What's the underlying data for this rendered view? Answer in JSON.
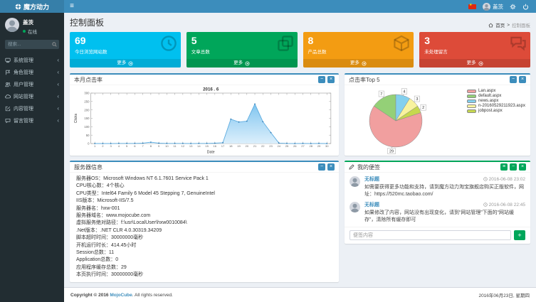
{
  "navbar": {
    "brand": "魔方动力",
    "user_name": "盖茨"
  },
  "sidebar": {
    "user": {
      "name": "盖茨",
      "status": "在线"
    },
    "search_placeholder": "搜索...",
    "menu": [
      {
        "label": "系统管理"
      },
      {
        "label": "角色管理"
      },
      {
        "label": "用户管理"
      },
      {
        "label": "网站管理"
      },
      {
        "label": "内容管理"
      },
      {
        "label": "留言管理"
      }
    ]
  },
  "icons": {
    "hamburger": "≡",
    "chevron": "‹",
    "separator": ">",
    "star": "★",
    "minus": "−",
    "close": "×",
    "list": "≡",
    "plus": "+"
  },
  "page": {
    "title": "控制面板",
    "breadcrumb_home": "首页",
    "breadcrumb_current": "控制面板"
  },
  "stats": [
    {
      "value": "69",
      "label": "今日浏览网站数",
      "more": "更多",
      "color": "#00c0ef"
    },
    {
      "value": "5",
      "label": "文章总数",
      "more": "更多",
      "color": "#00a65a"
    },
    {
      "value": "8",
      "label": "产品总数",
      "more": "更多",
      "color": "#f39c12"
    },
    {
      "value": "3",
      "label": "未处理留言",
      "more": "更多",
      "color": "#dd4b39"
    }
  ],
  "panels": {
    "clicks": {
      "title": "本月点击率"
    },
    "top5": {
      "title": "点击率Top 5"
    },
    "server": {
      "title": "服务器信息",
      "lines": [
        "服务器OS：Microsoft Windows NT 6.1.7601 Service Pack 1",
        "CPU核心数：4个核心",
        "CPU类型：Intel64 Family 6 Model 45 Stepping 7, GenuineIntel",
        "IIS版本：Microsoft-IIS/7.5",
        "服务器名：hxw-001",
        "服务器域名：www.mojocube.com",
        "虚拟服务绝对路径：f:\\usr\\LocalUser\\hxw0010084\\",
        ".Net版本：.NET CLR 4.0.30319.34209",
        "脚本超时时间：30000000毫秒",
        "开机运行时长：414.45小时",
        "Session总数：11",
        "Application总数：0",
        "应用程序缓存总数：29",
        "本页执行时间：30000000毫秒"
      ]
    },
    "notes": {
      "title": "我的便签",
      "input_placeholder": "便签内容",
      "items": [
        {
          "title": "无标题",
          "time": "2016-06-08 23:02",
          "text": "如需要获得更多功能和支持，请到魔方动力淘宝旗舰店购买正版软件，网址：https://520mc.taobao.com/"
        },
        {
          "title": "无标题",
          "time": "2016-06-08 22:45",
          "text": "如果修改了内容，网站没有出现变化，请到“网站管理”下面的“网站缓存”，清除所有缓存即可"
        }
      ]
    }
  },
  "footer": {
    "copyright_prefix": "Copyright © 2016 ",
    "brand": "MojoCube",
    "copyright_suffix": ". All rights reserved.",
    "date": "2016年06月23日, 星期四"
  },
  "chart_data": [
    {
      "type": "area",
      "title": "2016 . 6",
      "xlabel": "Date",
      "ylabel": "Clicks",
      "x": [
        1,
        2,
        3,
        4,
        5,
        6,
        7,
        8,
        9,
        10,
        11,
        12,
        13,
        14,
        15,
        16,
        17,
        18,
        19,
        20,
        21,
        22,
        23,
        24,
        25,
        26,
        27,
        28,
        29,
        30
      ],
      "values": [
        0,
        0,
        0,
        1,
        1,
        1,
        2,
        8,
        2,
        1,
        1,
        1,
        0,
        1,
        1,
        2,
        5,
        145,
        128,
        133,
        235,
        130,
        65,
        3,
        1,
        0,
        1,
        0,
        1,
        0
      ],
      "ylim": [
        0,
        300
      ],
      "grid": false,
      "line_color": "#5fade0",
      "marker_color": "#2f7cb5"
    },
    {
      "type": "pie",
      "title": "点击率Top 5",
      "labels": [
        "Lan.aspx",
        "default.aspx",
        "news.aspx",
        "n-20160529211923.aspx",
        "jobpost.aspx"
      ],
      "values": [
        29,
        7,
        4,
        3,
        2
      ],
      "colors": [
        "#f19f9f",
        "#94d077",
        "#83d0ee",
        "#f8f39e",
        "#c6d84e"
      ],
      "start_angle": 18,
      "legend_position": "right"
    }
  ]
}
